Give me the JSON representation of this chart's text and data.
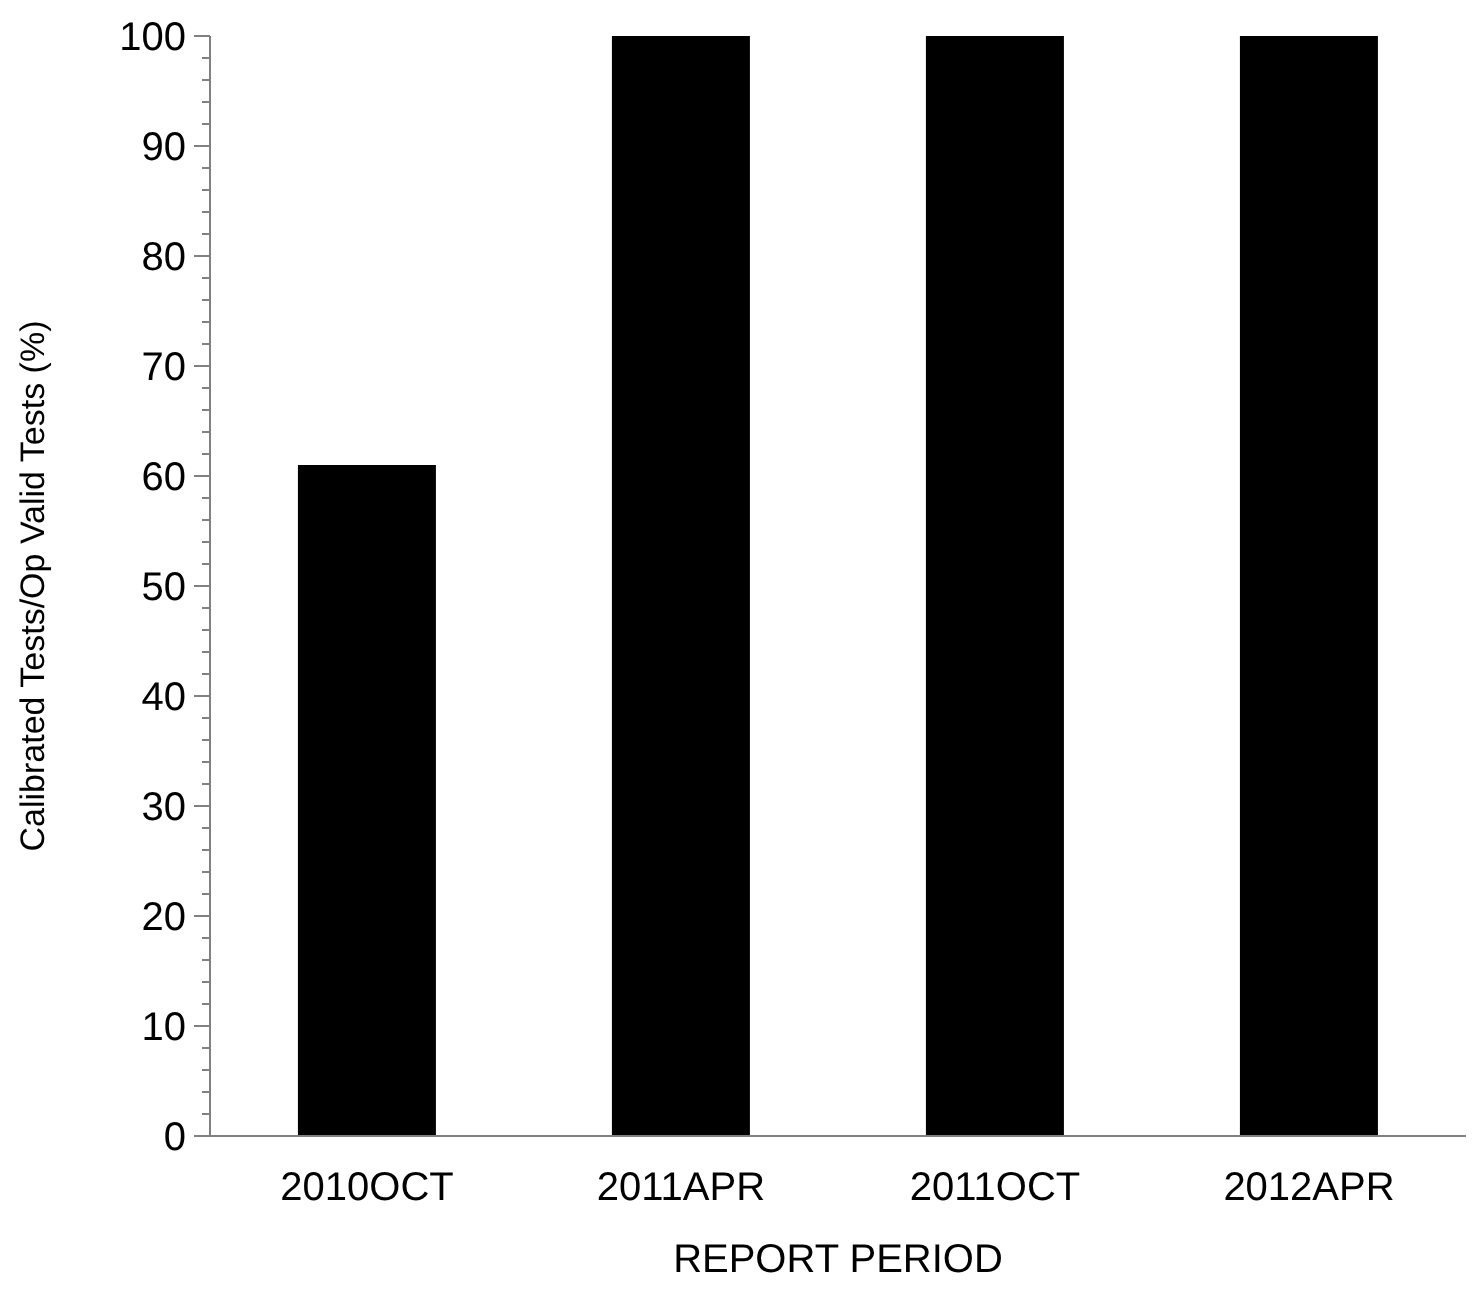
{
  "chart_data": {
    "type": "bar",
    "xlabel": "REPORT PERIOD",
    "ylabel": "Calibrated Tests/Op Valid Tests (%)",
    "categories": [
      "2010OCT",
      "2011APR",
      "2011OCT",
      "2012APR"
    ],
    "values": [
      61,
      100,
      100,
      100
    ],
    "color": "#000000",
    "ylim": [
      0,
      100
    ],
    "yticks": [
      0,
      {
        "value": 2,
        "label": null
      },
      {
        "value": 4,
        "label": null
      },
      {
        "value": 6,
        "label": null
      },
      {
        "value": 8,
        "label": null
      },
      10,
      {
        "value": 12,
        "label": null
      },
      {
        "value": 14,
        "label": null
      },
      {
        "value": 16,
        "label": null
      },
      {
        "value": 18,
        "label": null
      },
      20,
      {
        "value": 22,
        "label": null
      },
      {
        "value": 24,
        "label": null
      },
      {
        "value": 26,
        "label": null
      },
      {
        "value": 28,
        "label": null
      },
      30,
      {
        "value": 32,
        "label": null
      },
      {
        "value": 34,
        "label": null
      },
      {
        "value": 36,
        "label": null
      },
      {
        "value": 38,
        "label": null
      },
      40,
      {
        "value": 42,
        "label": null
      },
      {
        "value": 44,
        "label": null
      },
      {
        "value": 46,
        "label": null
      },
      {
        "value": 48,
        "label": null
      },
      50,
      {
        "value": 52,
        "label": null
      },
      {
        "value": 54,
        "label": null
      },
      {
        "value": 56,
        "label": null
      },
      {
        "value": 58,
        "label": null
      },
      60,
      {
        "value": 62,
        "label": null
      },
      {
        "value": 64,
        "label": null
      },
      {
        "value": 66,
        "label": null
      },
      {
        "value": 68,
        "label": null
      },
      70,
      {
        "value": 72,
        "label": null
      },
      {
        "value": 74,
        "label": null
      },
      {
        "value": 76,
        "label": null
      },
      {
        "value": 78,
        "label": null
      },
      80,
      {
        "value": 82,
        "label": null
      },
      {
        "value": 84,
        "label": null
      },
      {
        "value": 86,
        "label": null
      },
      {
        "value": 88,
        "label": null
      },
      90,
      {
        "value": 92,
        "label": null
      },
      {
        "value": 94,
        "label": null
      },
      {
        "value": 96,
        "label": null
      },
      {
        "value": 98,
        "label": null
      },
      100
    ],
    "grid": false,
    "legend": false
  }
}
